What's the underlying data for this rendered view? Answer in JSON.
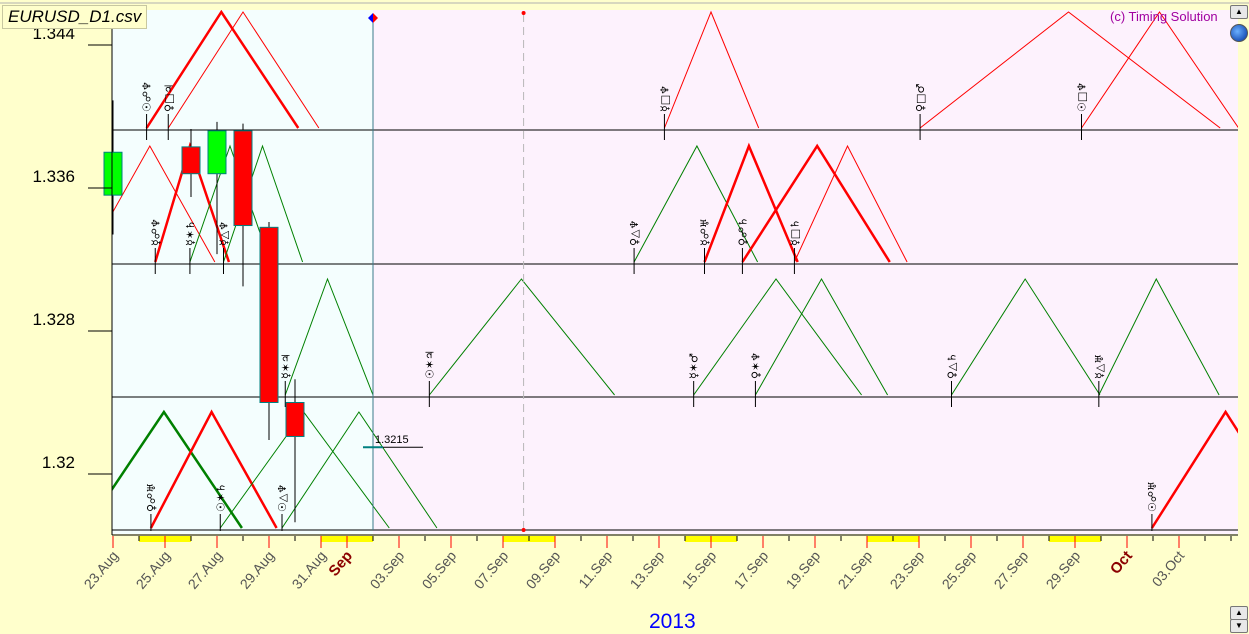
{
  "window": {
    "title": "EURUSD_D1.csv",
    "copyright": "(c) Timing Solution"
  },
  "colors": {
    "bull": "#00ff00",
    "bear": "#ff0000",
    "candle_border": "#008080",
    "hard_aspect": "#ff0000",
    "soft_aspect": "#008000",
    "history_bg": "#f4fefe",
    "forecast_bg": "#fdf2fd",
    "panel_bg": "#ffffcc",
    "month_label": "#8b0000",
    "year_label": "#0000ff"
  },
  "icons": {
    "scroll_up": "triangle-up-icon",
    "scroll_down": "triangle-down-icon",
    "globe": "globe-icon",
    "cursor": "diamond-marker-icon"
  },
  "chart_data": {
    "type": "candlestick",
    "title": "EURUSD_D1.csv",
    "xlim": [
      "2013-08-23",
      "2013-10-05T07:00"
    ],
    "ylim": [
      1.3169,
      1.346
    ],
    "y_ticks": [
      {
        "value": 1.344,
        "label": "1.344"
      },
      {
        "value": 1.336,
        "label": "1.336"
      },
      {
        "value": 1.328,
        "label": "1.328"
      },
      {
        "value": 1.32,
        "label": "1.32"
      }
    ],
    "x_ticks": [
      {
        "date": "2013-08-23",
        "label": "23.Aug"
      },
      {
        "date": "2013-08-25",
        "label": "25.Aug"
      },
      {
        "date": "2013-08-27",
        "label": "27.Aug"
      },
      {
        "date": "2013-08-29",
        "label": "29.Aug"
      },
      {
        "date": "2013-08-31",
        "label": "31.Aug"
      },
      {
        "date": "2013-09-01",
        "label": "Sep",
        "month": true
      },
      {
        "date": "2013-09-03",
        "label": "03.Sep"
      },
      {
        "date": "2013-09-05",
        "label": "05.Sep"
      },
      {
        "date": "2013-09-07",
        "label": "07.Sep"
      },
      {
        "date": "2013-09-09",
        "label": "09.Sep"
      },
      {
        "date": "2013-09-11",
        "label": "11.Sep"
      },
      {
        "date": "2013-09-13",
        "label": "13.Sep"
      },
      {
        "date": "2013-09-15",
        "label": "15.Sep"
      },
      {
        "date": "2013-09-17",
        "label": "17.Sep"
      },
      {
        "date": "2013-09-19",
        "label": "19.Sep"
      },
      {
        "date": "2013-09-21",
        "label": "21.Sep"
      },
      {
        "date": "2013-09-23",
        "label": "23.Sep"
      },
      {
        "date": "2013-09-25",
        "label": "25.Sep"
      },
      {
        "date": "2013-09-27",
        "label": "27.Sep"
      },
      {
        "date": "2013-09-29",
        "label": "29.Sep"
      },
      {
        "date": "2013-10-01",
        "label": "Oct",
        "month": true
      },
      {
        "date": "2013-10-03",
        "label": "03.Oct"
      }
    ],
    "year_label": "2013",
    "weekends": [
      [
        "2013-08-24",
        "2013-08-26"
      ],
      [
        "2013-08-31",
        "2013-09-02"
      ],
      [
        "2013-09-07",
        "2013-09-09"
      ],
      [
        "2013-09-14",
        "2013-09-16"
      ],
      [
        "2013-09-21",
        "2013-09-23"
      ],
      [
        "2013-09-28",
        "2013-09-30"
      ]
    ],
    "candles": [
      {
        "date": "2013-08-23",
        "open": 1.3356,
        "high": 1.3409,
        "low": 1.3334,
        "close": 1.338
      },
      {
        "date": "2013-08-26",
        "open": 1.3383,
        "high": 1.3393,
        "low": 1.3355,
        "close": 1.3368
      },
      {
        "date": "2013-08-27",
        "open": 1.3368,
        "high": 1.3397,
        "low": 1.3323,
        "close": 1.3392
      },
      {
        "date": "2013-08-28",
        "open": 1.3392,
        "high": 1.3396,
        "low": 1.3305,
        "close": 1.3339
      },
      {
        "date": "2013-08-29",
        "open": 1.3338,
        "high": 1.3341,
        "low": 1.3219,
        "close": 1.324
      },
      {
        "date": "2013-08-30",
        "open": 1.324,
        "high": 1.3253,
        "low": 1.3173,
        "close": 1.3221
      }
    ],
    "last_price": {
      "date": "2013-09-02",
      "value": 1.3215,
      "label": "1.3215"
    },
    "cursor_date": "2013-09-02",
    "marker_date": "2013-09-07T19:00",
    "aspect_bands": 4,
    "aspects": [
      {
        "band": 1,
        "label": "☉☍♆",
        "kind": "hard",
        "thick": true,
        "start": "2013-08-24T07:00",
        "peak": "2013-08-27T04:00",
        "end": "2013-08-30T03:00"
      },
      {
        "band": 1,
        "label": "♀□♃",
        "kind": "hard",
        "thick": false,
        "start": "2013-08-25T03:00",
        "peak": "2013-08-28T00:00",
        "end": "2013-08-30T22:00"
      },
      {
        "band": 1,
        "label": "☿□♆",
        "kind": "hard",
        "thick": false,
        "start": "2013-09-13T05:00",
        "peak": "2013-09-15T00:00",
        "end": "2013-09-16T20:00"
      },
      {
        "band": 1,
        "label": "♀□♂",
        "kind": "hard",
        "thick": false,
        "start": "2013-09-23T01:00",
        "peak": "2013-09-28T18:00",
        "end": "2013-10-04T14:00"
      },
      {
        "band": 1,
        "label": "☉□♆",
        "kind": "hard",
        "thick": false,
        "start": "2013-09-29T06:00",
        "peak": "2013-10-02T06:00",
        "end": "2013-10-05T07:00"
      },
      {
        "band": 2,
        "label": "",
        "kind": "hard",
        "thick": false,
        "start": "2013-08-21T22:00",
        "peak": "2013-08-24T10:00",
        "end": "2013-08-26T22:00"
      },
      {
        "band": 2,
        "label": "☿☍♆",
        "kind": "hard",
        "thick": true,
        "start": "2013-08-24T15:00",
        "peak": "2013-08-25T23:00",
        "end": "2013-08-27T11:00"
      },
      {
        "band": 2,
        "label": "☿✶♄",
        "kind": "soft",
        "thick": false,
        "start": "2013-08-25T23:00",
        "peak": "2013-08-27T12:00",
        "end": "2013-08-29T01:00"
      },
      {
        "band": 2,
        "label": "☿△♆",
        "kind": "soft",
        "thick": false,
        "start": "2013-08-27T06:00",
        "peak": "2013-08-28T18:00",
        "end": "2013-08-30T07:00"
      },
      {
        "band": 2,
        "label": "♀△♆",
        "kind": "soft",
        "thick": false,
        "start": "2013-09-12T01:00",
        "peak": "2013-09-14T11:00",
        "end": "2013-09-16T19:00"
      },
      {
        "band": 2,
        "label": "☿☍♅",
        "kind": "hard",
        "thick": true,
        "start": "2013-09-14T18:00",
        "peak": "2013-09-16T11:00",
        "end": "2013-09-18T08:00"
      },
      {
        "band": 2,
        "label": "♀☍♄",
        "kind": "hard",
        "thick": true,
        "start": "2013-09-16T05:00",
        "peak": "2013-09-19T02:00",
        "end": "2013-09-21T21:00"
      },
      {
        "band": 2,
        "label": "☿□♄",
        "kind": "hard",
        "thick": false,
        "start": "2013-09-18T05:00",
        "peak": "2013-09-20T06:00",
        "end": "2013-09-22T13:00"
      },
      {
        "band": 3,
        "label": "☿✶♃",
        "kind": "soft",
        "thick": false,
        "start": "2013-08-29T15:00",
        "peak": "2013-08-31T06:00",
        "end": "2013-09-02T00:00"
      },
      {
        "band": 3,
        "label": "☉✶♃",
        "kind": "soft",
        "thick": false,
        "start": "2013-09-04T04:00",
        "peak": "2013-09-07T17:00",
        "end": "2013-09-11T07:00"
      },
      {
        "band": 3,
        "label": "☿✶♂",
        "kind": "soft",
        "thick": false,
        "start": "2013-09-14T08:00",
        "peak": "2013-09-17T12:00",
        "end": "2013-09-20T19:00"
      },
      {
        "band": 3,
        "label": "♀✶♆",
        "kind": "soft",
        "thick": false,
        "start": "2013-09-16T17:00",
        "peak": "2013-09-19T06:00",
        "end": "2013-09-21T19:00"
      },
      {
        "band": 3,
        "label": "♀△♄",
        "kind": "soft",
        "thick": false,
        "start": "2013-09-24T06:00",
        "peak": "2013-09-27T02:00",
        "end": "2013-09-29T23:00"
      },
      {
        "band": 3,
        "label": "☿△♅",
        "kind": "soft",
        "thick": false,
        "start": "2013-09-29T22:00",
        "peak": "2013-10-02T03:00",
        "end": "2013-10-04T13:00"
      },
      {
        "band": 4,
        "label": "",
        "kind": "soft",
        "thick": true,
        "start": "2013-08-21T23:00",
        "peak": "2013-08-24T23:00",
        "end": "2013-08-27T23:00"
      },
      {
        "band": 4,
        "label": "♀☍♅",
        "kind": "hard",
        "thick": true,
        "start": "2013-08-24T11:00",
        "peak": "2013-08-26T19:00",
        "end": "2013-08-29T07:00"
      },
      {
        "band": 4,
        "label": "☉✶♄",
        "kind": "soft",
        "thick": false,
        "start": "2013-08-27T03:00",
        "peak": "2013-08-30T08:00",
        "end": "2013-09-02T15:00"
      },
      {
        "band": 4,
        "label": "☉△♆",
        "kind": "soft",
        "thick": false,
        "start": "2013-08-29T12:00",
        "peak": "2013-09-01T11:00",
        "end": "2013-09-04T11:00"
      },
      {
        "band": 4,
        "label": "☉☍♅",
        "kind": "hard",
        "thick": true,
        "start": "2013-10-01T23:00",
        "peak": "2013-10-04T19:00",
        "end": "2013-10-07T16:00"
      },
      {
        "band": 4,
        "label": "☿✶♆",
        "kind": "soft",
        "thick": false,
        "start": "2013-10-05T18:00",
        "peak": "2013-10-08T11:00",
        "end": "2013-10-11T04:00"
      }
    ]
  }
}
